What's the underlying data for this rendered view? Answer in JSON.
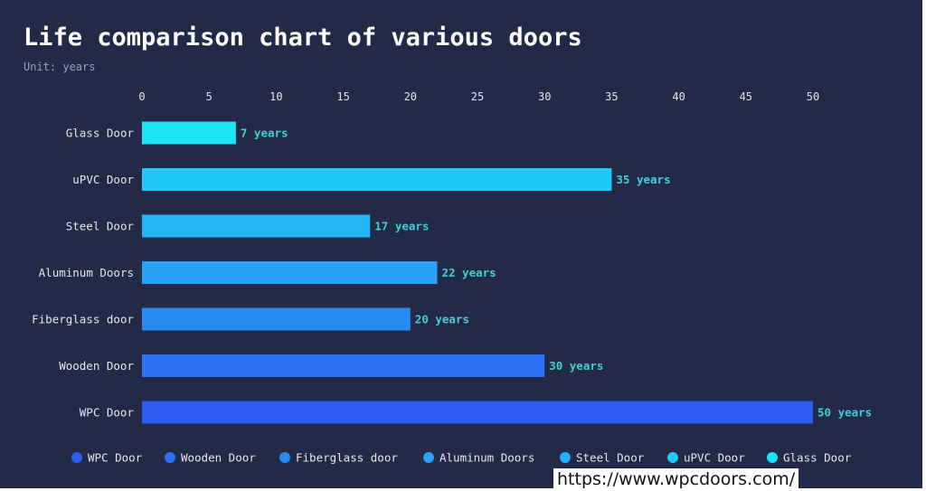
{
  "title": "Life comparison chart of various doors",
  "subtitle": "Unit: years",
  "url": "https://www.wpcdoors.com/",
  "chart_data": {
    "type": "bar",
    "orientation": "horizontal",
    "categories": [
      "WPC Door",
      "Wooden Door",
      "Fiberglass door",
      "Aluminum Doors",
      "Steel Door",
      "uPVC Door",
      "Glass Door"
    ],
    "values": [
      50,
      30,
      20,
      22,
      17,
      35,
      7
    ],
    "data_labels": [
      "50 years",
      "30 years",
      "20 years",
      "22 years",
      "17 years",
      "35 years",
      "7 years"
    ],
    "colors": [
      "#2f5cf4",
      "#2c72f3",
      "#2a8af4",
      "#28a0f8",
      "#24b5f9",
      "#21c9fa",
      "#1de3f6"
    ],
    "xticks": [
      "0",
      "5",
      "10",
      "15",
      "20",
      "25",
      "30",
      "35",
      "40",
      "45",
      "50"
    ],
    "xlim": [
      0,
      50
    ],
    "xaxis_position": "top",
    "grid": false,
    "legend_position": "bottom",
    "legend": [
      "WPC Door",
      "Wooden Door",
      "Fiberglass door",
      "Aluminum Doors",
      "Steel Door",
      "uPVC Door",
      "Glass Door"
    ]
  }
}
